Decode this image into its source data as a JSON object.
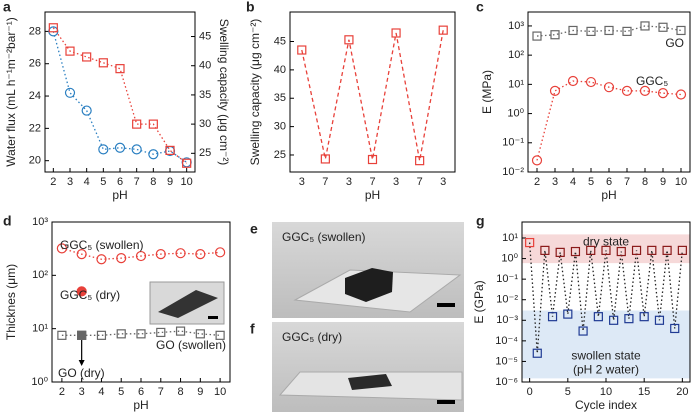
{
  "chart_data": [
    {
      "panel": "a",
      "type": "line",
      "xlabel": "pH",
      "x": [
        2,
        3,
        4,
        5,
        6,
        7,
        8,
        9,
        10
      ],
      "xlim": [
        1.5,
        10.5
      ],
      "xticks": [
        2,
        3,
        4,
        5,
        6,
        7,
        8,
        9,
        10
      ],
      "ylabel": "Water flux (mL h⁻¹m⁻²bar⁻¹)",
      "ylabel_color": "#2a7fc1",
      "ylim": [
        19.3,
        29.2
      ],
      "yticks": [
        20,
        22,
        24,
        26,
        28
      ],
      "y2label": "Swelling capacity (μg cm⁻²)",
      "y2label_color": "#e8413a",
      "y2lim": [
        21.8,
        49.2
      ],
      "y2ticks": [
        25,
        30,
        35,
        40,
        45
      ],
      "series": [
        {
          "color": "#2a7fc1",
          "marker": "circle",
          "line": "dotted",
          "values": [
            28.0,
            24.2,
            23.1,
            20.7,
            20.8,
            20.7,
            20.4,
            20.6,
            19.9
          ]
        },
        {
          "color": "#e8413a",
          "marker": "square",
          "line": "dotted",
          "axis": "y2",
          "values": [
            46.5,
            42.5,
            41.5,
            40.5,
            39.5,
            30,
            30,
            25.5,
            23.3
          ]
        }
      ]
    },
    {
      "panel": "b",
      "type": "line",
      "xlabel": "pH",
      "categories": [
        "3",
        "7",
        "3",
        "7",
        "3",
        "7",
        "3"
      ],
      "ylabel": "Swelling capacity (μg cm⁻²)",
      "ylim": [
        22,
        50.2
      ],
      "yticks": [
        25,
        30,
        35,
        40,
        45
      ],
      "series": [
        {
          "color": "#e8413a",
          "marker": "square",
          "line": "dashed",
          "values": [
            43.5,
            24.3,
            45.3,
            24.2,
            46.5,
            24,
            47
          ]
        }
      ]
    },
    {
      "panel": "c",
      "type": "line",
      "xlabel": "pH",
      "x": [
        2,
        3,
        4,
        5,
        6,
        7,
        8,
        9,
        10
      ],
      "xlim": [
        1.5,
        10.5
      ],
      "xticks": [
        2,
        3,
        4,
        5,
        6,
        7,
        8,
        9,
        10
      ],
      "ylabel": "E (MPa)",
      "yscale": "log",
      "ylim": [
        0.01,
        3000
      ],
      "yticks": [
        {
          "value": 0.01,
          "label": "10⁻²"
        },
        {
          "value": 0.1,
          "label": "10⁻¹"
        },
        {
          "value": 1,
          "label": "10⁰"
        },
        {
          "value": 10,
          "label": "10¹"
        },
        {
          "value": 100,
          "label": "10²"
        },
        {
          "value": 1000,
          "label": "10³"
        }
      ],
      "series": [
        {
          "name": "GO",
          "color": "#666666",
          "marker": "square",
          "line": "dotted",
          "values": [
            450,
            500,
            700,
            650,
            700,
            650,
            1000,
            900,
            700
          ]
        },
        {
          "name": "GGC₅",
          "color": "#e8413a",
          "marker": "circle",
          "line": "dotted",
          "values": [
            0.025,
            6,
            13,
            12,
            8,
            6,
            6,
            5,
            4.5
          ]
        }
      ]
    },
    {
      "panel": "d",
      "type": "line",
      "xlabel": "pH",
      "x": [
        2,
        3,
        4,
        5,
        6,
        7,
        8,
        9,
        10
      ],
      "xlim": [
        1.5,
        10.5
      ],
      "xticks": [
        2,
        3,
        4,
        5,
        6,
        7,
        8,
        9,
        10
      ],
      "ylabel": "Thicknes (μm)",
      "yscale": "log",
      "ylim": [
        1,
        1000
      ],
      "yticks": [
        {
          "value": 1,
          "label": "10⁰"
        },
        {
          "value": 10,
          "label": "10¹"
        },
        {
          "value": 100,
          "label": "10²"
        },
        {
          "value": 1000,
          "label": "10³"
        }
      ],
      "series": [
        {
          "name": "GGC₅ (swollen)",
          "color": "#e8413a",
          "marker": "circle",
          "line": "dotted",
          "values": [
            320,
            250,
            200,
            210,
            230,
            250,
            260,
            250,
            270
          ]
        },
        {
          "name": "GO (swollen)",
          "color": "#666666",
          "marker": "square",
          "line": "dotted",
          "values": [
            7.5,
            7.5,
            7.5,
            8,
            8,
            8.5,
            9,
            8,
            7.5
          ]
        },
        {
          "name": "GGC₅ (dry)",
          "color": "#e8413a",
          "marker": "circle",
          "filled": true,
          "values": [
            null,
            50,
            null,
            null,
            null,
            null,
            null,
            null,
            null
          ]
        },
        {
          "name": "GO (dry)",
          "color": "#666666",
          "marker": "square",
          "filled": true,
          "values": [
            null,
            7.5,
            null,
            null,
            null,
            null,
            null,
            null,
            null
          ]
        }
      ]
    },
    {
      "panel": "g",
      "type": "line",
      "xlabel": "Cycle index",
      "x": [
        0,
        1,
        2,
        3,
        4,
        5,
        6,
        7,
        8,
        9,
        10,
        11,
        12,
        13,
        14,
        15,
        16,
        17,
        18,
        19,
        20
      ],
      "xlim": [
        -1,
        21
      ],
      "xticks": [
        0,
        5,
        10,
        15,
        20
      ],
      "ylabel": "E (GPa)",
      "yscale": "log",
      "ylim": [
        1e-06,
        60
      ],
      "yticks": [
        {
          "value": 1e-06,
          "label": "10⁻⁶"
        },
        {
          "value": 1e-05,
          "label": "10⁻⁵"
        },
        {
          "value": 0.0001,
          "label": "10⁻⁴"
        },
        {
          "value": 0.001,
          "label": "10⁻³"
        },
        {
          "value": 0.01,
          "label": "10⁻²"
        },
        {
          "value": 0.1,
          "label": "10⁻¹"
        },
        {
          "value": 1,
          "label": "10⁰"
        },
        {
          "value": 10,
          "label": "10¹"
        }
      ],
      "bands": [
        {
          "label": [
            "dry state"
          ],
          "range": [
            0.6,
            15
          ],
          "color": "#f6d9d9",
          "text_color": "#8b1a1a"
        },
        {
          "label": [
            "swollen state",
            "(pH 2 water)"
          ],
          "range": [
            1.5e-06,
            0.003
          ],
          "color": "#dde9f6",
          "text_color": "#1f3a93"
        }
      ],
      "series": [
        {
          "color": "#222222",
          "marker": "square",
          "line": "dotted",
          "marker_colors": [
            "#e8413a",
            "#1f3a93",
            "#8b1a1a",
            "#1f3a93",
            "#8b1a1a",
            "#1f3a93",
            "#8b1a1a",
            "#1f3a93",
            "#8b1a1a",
            "#1f3a93",
            "#8b1a1a",
            "#1f3a93",
            "#8b1a1a",
            "#1f3a93",
            "#8b1a1a",
            "#1f3a93",
            "#8b1a1a",
            "#1f3a93",
            "#8b1a1a",
            "#1f3a93",
            "#8b1a1a"
          ],
          "values": [
            6,
            2.5e-05,
            2.5,
            0.0015,
            2,
            0.002,
            2.2,
            0.0003,
            2.5,
            0.0015,
            2.5,
            0.001,
            2.2,
            0.0012,
            2.5,
            0.0015,
            2.5,
            0.001,
            2.5,
            0.0004,
            2.5
          ]
        }
      ]
    }
  ],
  "photos": [
    {
      "panel": "e",
      "label": "GGC₅ (swollen)"
    },
    {
      "panel": "f",
      "label": "GGC₅ (dry)"
    }
  ]
}
